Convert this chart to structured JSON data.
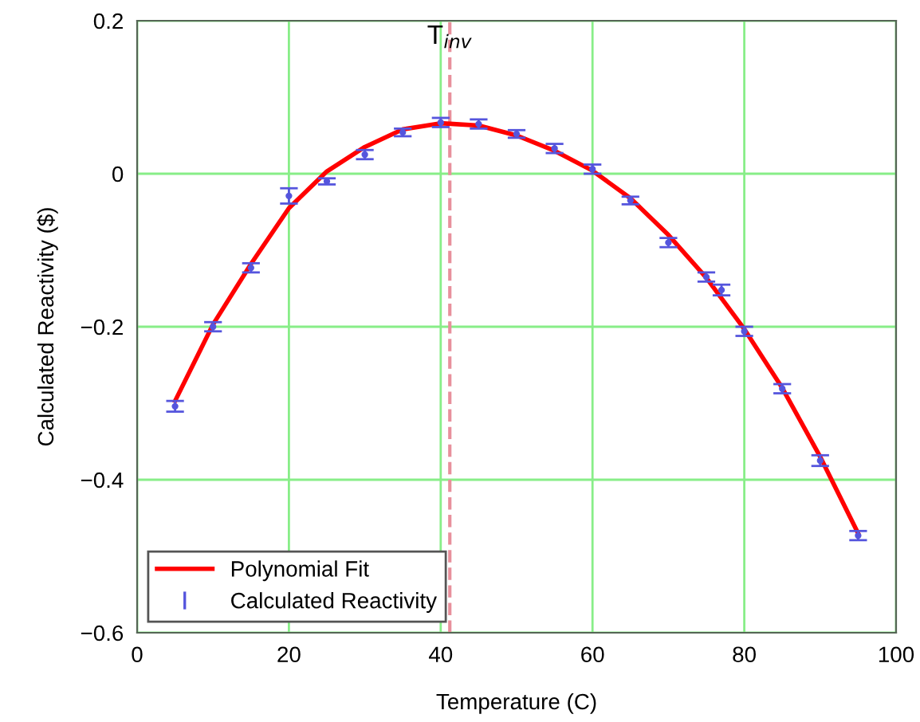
{
  "chart_data": {
    "type": "line",
    "xlabel": "Temperature (C)",
    "ylabel": "Calculated Reactivity ($)",
    "xlim": [
      0,
      100
    ],
    "xticks": [
      0,
      20,
      40,
      60,
      80,
      100
    ],
    "ylim": [
      -0.6,
      0.2
    ],
    "yticks": [
      {
        "value": -0.6,
        "label": "−0.6"
      },
      {
        "value": -0.4,
        "label": "−0.4"
      },
      {
        "value": -0.2,
        "label": "−0.2"
      },
      0,
      0.2
    ],
    "grid": true,
    "legend": "bottom left",
    "ref_lines": [
      {
        "axis": "x",
        "value": 41.2,
        "label": "T$_{inv}$",
        "color": "#e8909c",
        "line_style": "dashed"
      }
    ],
    "series": [
      {
        "name": "Polynomial Fit",
        "color": "#ff0000",
        "x": [
          5,
          10,
          15,
          20,
          25,
          30,
          35,
          40,
          45,
          50,
          55,
          60,
          65,
          70,
          75,
          80,
          85,
          90,
          95
        ],
        "values": [
          -0.297,
          -0.197,
          -0.118,
          -0.045,
          0.003,
          0.035,
          0.058,
          0.066,
          0.063,
          0.05,
          0.03,
          0.004,
          -0.032,
          -0.08,
          -0.136,
          -0.203,
          -0.28,
          -0.37,
          -0.47
        ]
      },
      {
        "name": "Calculated Reactivity",
        "type": "scatter",
        "color": "#5555dd",
        "x": [
          5,
          10,
          15,
          20,
          25,
          30,
          35,
          40,
          45,
          50,
          55,
          60,
          65,
          70,
          75,
          77,
          80,
          85,
          90,
          95
        ],
        "values": [
          -0.304,
          -0.2,
          -0.123,
          -0.029,
          -0.01,
          0.025,
          0.054,
          0.067,
          0.065,
          0.052,
          0.033,
          0.006,
          -0.035,
          -0.09,
          -0.135,
          -0.152,
          -0.206,
          -0.281,
          -0.375,
          -0.473
        ],
        "errors": [
          0.007,
          0.006,
          0.006,
          0.01,
          0.004,
          0.006,
          0.005,
          0.006,
          0.006,
          0.005,
          0.006,
          0.006,
          0.005,
          0.006,
          0.006,
          0.007,
          0.006,
          0.006,
          0.007,
          0.006
        ]
      }
    ]
  }
}
